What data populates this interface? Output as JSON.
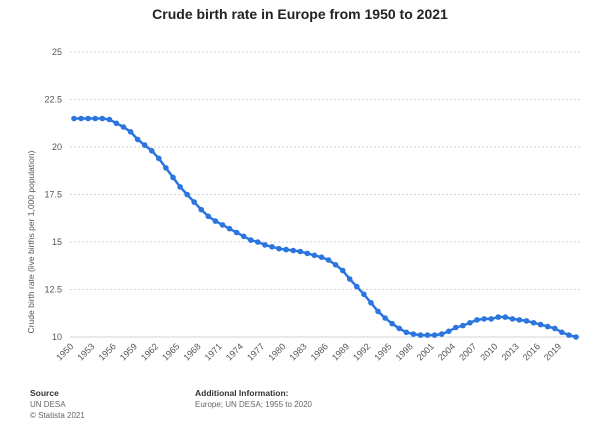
{
  "chart_data": {
    "type": "line",
    "title": "Crude birth rate in Europe from 1950 to 2021",
    "ylabel": "Crude birth rate (live births per 1,000 population)",
    "xlabel": "",
    "ylim": [
      10,
      25
    ],
    "yticks": [
      10,
      12.5,
      15,
      17.5,
      20,
      22.5,
      25
    ],
    "ytick_labels": [
      "10",
      "12.5",
      "15",
      "17.5",
      "20",
      "22.5",
      "25"
    ],
    "xlim": [
      1950,
      2021
    ],
    "xtick_labels": [
      "1950",
      "1953",
      "1956",
      "1959",
      "1962",
      "1965",
      "1968",
      "1971",
      "1974",
      "1977",
      "1980",
      "1983",
      "1986",
      "1989",
      "1992",
      "1995",
      "1998",
      "2001",
      "2004",
      "2007",
      "2010",
      "2013",
      "2016",
      "2019"
    ],
    "grid": true,
    "color": "#2a75e0",
    "series": [
      {
        "x": [
          1950,
          1951,
          1952,
          1953,
          1954,
          1955,
          1956,
          1957,
          1958,
          1959,
          1960,
          1961,
          1962,
          1963,
          1964,
          1965,
          1966,
          1967,
          1968,
          1969,
          1970,
          1971,
          1972,
          1973,
          1974,
          1975,
          1976,
          1977,
          1978,
          1979,
          1980,
          1981,
          1982,
          1983,
          1984,
          1985,
          1986,
          1987,
          1988,
          1989,
          1990,
          1991,
          1992,
          1993,
          1994,
          1995,
          1996,
          1997,
          1998,
          1999,
          2000,
          2001,
          2002,
          2003,
          2004,
          2005,
          2006,
          2007,
          2008,
          2009,
          2010,
          2011,
          2012,
          2013,
          2014,
          2015,
          2016,
          2017,
          2018,
          2019,
          2020,
          2021
        ],
        "y": [
          21.5,
          21.5,
          21.5,
          21.5,
          21.5,
          21.45,
          21.25,
          21.05,
          20.8,
          20.4,
          20.1,
          19.8,
          19.4,
          18.9,
          18.4,
          17.9,
          17.5,
          17.1,
          16.7,
          16.35,
          16.1,
          15.9,
          15.7,
          15.5,
          15.3,
          15.1,
          15.0,
          14.85,
          14.75,
          14.65,
          14.6,
          14.55,
          14.5,
          14.4,
          14.3,
          14.2,
          14.05,
          13.8,
          13.5,
          13.05,
          12.65,
          12.25,
          11.8,
          11.35,
          11.0,
          10.7,
          10.45,
          10.25,
          10.15,
          10.1,
          10.1,
          10.1,
          10.15,
          10.3,
          10.5,
          10.6,
          10.75,
          10.9,
          10.95,
          10.95,
          11.05,
          11.05,
          10.95,
          10.9,
          10.85,
          10.75,
          10.65,
          10.55,
          10.45,
          10.25,
          10.1,
          10.0
        ]
      }
    ]
  },
  "footer": {
    "source_heading": "Source",
    "source_lines": [
      "UN DESA",
      "© Statista 2021"
    ],
    "info_heading": "Additional Information:",
    "info_line": "Europe; UN DESA; 1955 to 2020"
  }
}
